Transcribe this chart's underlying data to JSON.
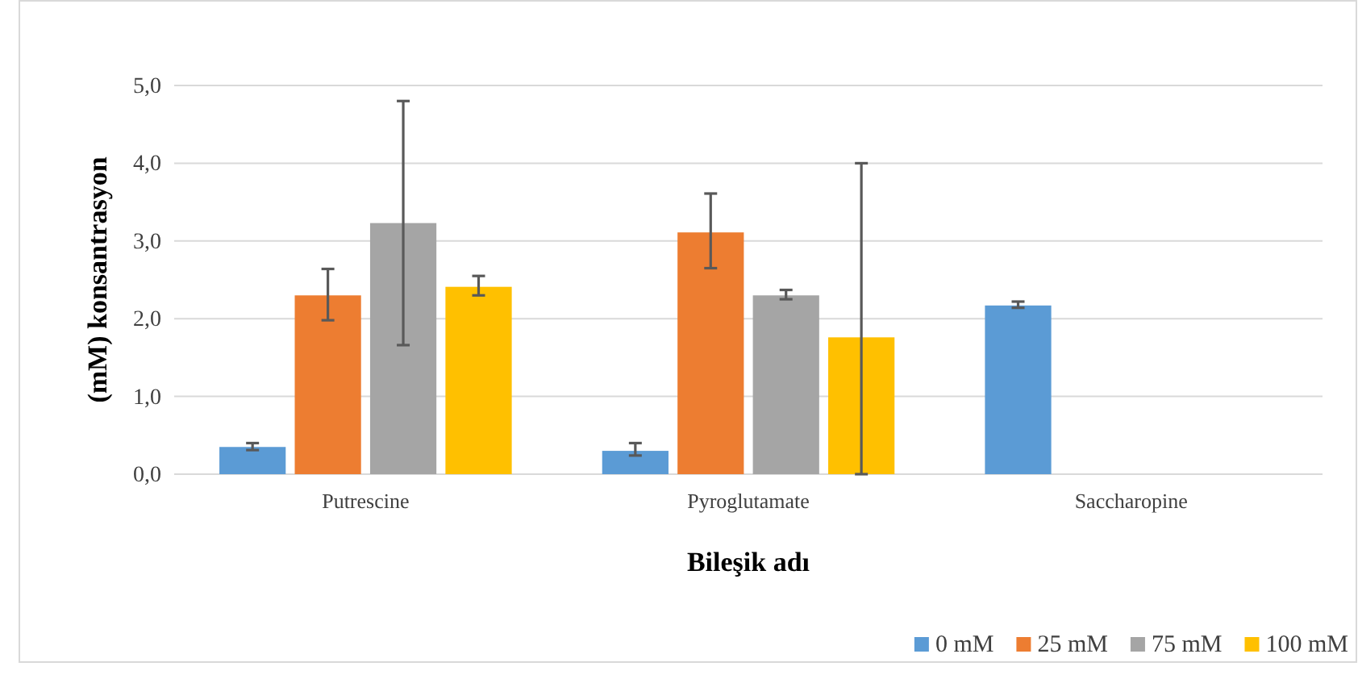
{
  "chart_data": {
    "type": "bar",
    "xlabel": "Bileşik adı",
    "ylabel": "(mM) konsantrasyon",
    "categories": [
      "Putrescine",
      "Pyroglutamate",
      "Saccharopine"
    ],
    "series": [
      {
        "name": "0 mM",
        "color": "#5b9bd5",
        "values": [
          0.35,
          0.3,
          2.17
        ],
        "errors": [
          [
            0.31,
            0.4
          ],
          [
            0.24,
            0.4
          ],
          [
            2.14,
            2.22
          ]
        ]
      },
      {
        "name": "25 mM",
        "color": "#ed7d31",
        "values": [
          2.3,
          3.11,
          null
        ],
        "errors": [
          [
            1.98,
            2.64
          ],
          [
            2.65,
            3.61
          ],
          null
        ]
      },
      {
        "name": "75 mM",
        "color": "#a5a5a5",
        "values": [
          3.23,
          2.3,
          null
        ],
        "errors": [
          [
            1.66,
            4.8
          ],
          [
            2.25,
            2.37
          ],
          null
        ]
      },
      {
        "name": "100 mM",
        "color": "#ffc000",
        "values": [
          2.41,
          1.76,
          null
        ],
        "errors": [
          [
            2.3,
            2.55
          ],
          [
            0,
            4.0
          ],
          null
        ]
      }
    ],
    "ylim": [
      0,
      5
    ],
    "yticks": [
      {
        "value": 0,
        "label": "0,0"
      },
      {
        "value": 1,
        "label": "1,0"
      },
      {
        "value": 2,
        "label": "2,0"
      },
      {
        "value": 3,
        "label": "3,0"
      },
      {
        "value": 4,
        "label": "4,0"
      },
      {
        "value": 5,
        "label": "5,0"
      }
    ],
    "grid": "y",
    "legend": "bottom right"
  }
}
